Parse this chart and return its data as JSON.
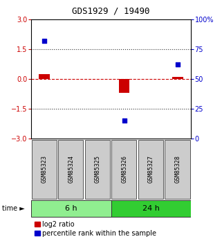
{
  "title": "GDS1929 / 19490",
  "samples": [
    "GSM85323",
    "GSM85324",
    "GSM85325",
    "GSM85326",
    "GSM85327",
    "GSM85328"
  ],
  "log2_ratio": [
    0.25,
    0.0,
    0.0,
    -0.7,
    0.0,
    0.1
  ],
  "percentile_rank": [
    82,
    0,
    0,
    15,
    0,
    62
  ],
  "ylim_left": [
    -3,
    3
  ],
  "ylim_right": [
    0,
    100
  ],
  "yticks_left": [
    -3,
    -1.5,
    0,
    1.5,
    3
  ],
  "yticks_right": [
    0,
    25,
    50,
    75,
    100
  ],
  "groups": [
    {
      "label": "6 h",
      "indices": [
        0,
        1,
        2
      ],
      "color": "#90EE90"
    },
    {
      "label": "24 h",
      "indices": [
        3,
        4,
        5
      ],
      "color": "#32CD32"
    }
  ],
  "bar_color_red": "#CC0000",
  "bar_color_blue": "#0000CC",
  "zero_line_color": "#CC0000",
  "dotted_line_color": "#333333",
  "bar_width": 0.4,
  "bg_color": "#FFFFFF",
  "ax_bg_color": "#FFFFFF",
  "legend_red_label": "log2 ratio",
  "legend_blue_label": "percentile rank within the sample",
  "sample_box_color": "#CCCCCC",
  "title_fontsize": 9,
  "tick_fontsize": 7,
  "sample_fontsize": 6,
  "group_fontsize": 8,
  "legend_fontsize": 7
}
